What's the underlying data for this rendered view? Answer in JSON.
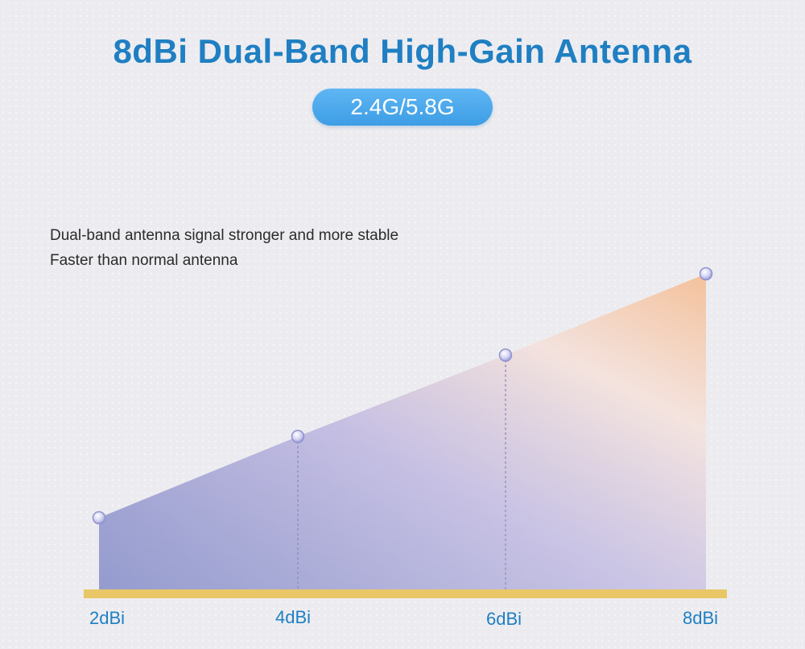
{
  "header": {
    "title": "8dBi Dual-Band High-Gain Antenna",
    "badge": "2.4G/5.8G"
  },
  "description": [
    "Dual-band antenna signal stronger and more stable",
    "Faster than normal antenna"
  ],
  "colors": {
    "title": "#1f7fc2",
    "badge": "#4aa8ec",
    "baseline": "#e9c766",
    "area_start": "#7f87c4",
    "area_mid": "#c9bfe2",
    "area_end": "#f6cfa8"
  },
  "chart_data": {
    "type": "area",
    "categories": [
      "2dBi",
      "4dBi",
      "6dBi",
      "8dBi"
    ],
    "values": [
      2,
      4,
      6,
      8
    ],
    "xlabel": "",
    "ylabel": "",
    "grid": false
  }
}
